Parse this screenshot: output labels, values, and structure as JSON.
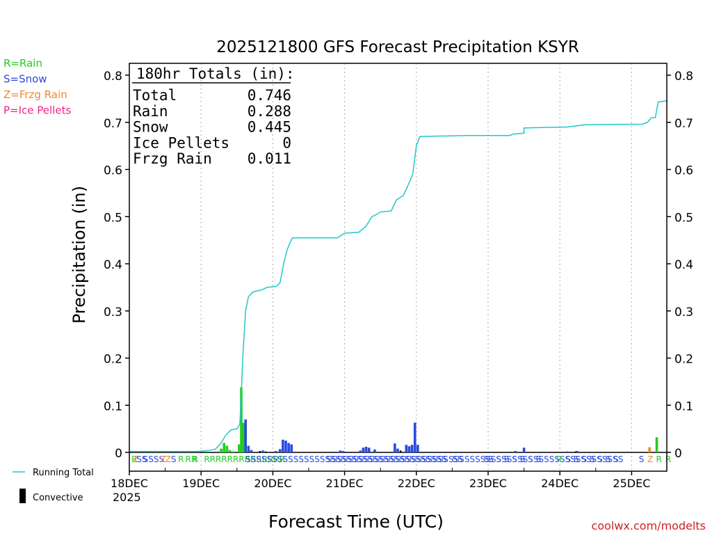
{
  "chart_data": {
    "type": "bar",
    "title": "2025121800 GFS Forecast Precipitation KSYR",
    "ylabel": "Precipitation (in)",
    "xlabel": "Forecast Time (UTC)",
    "ylim": [
      0,
      0.82
    ],
    "y_ticks": [
      "0",
      "0.1",
      "0.2",
      "0.3",
      "0.4",
      "0.5",
      "0.6",
      "0.7",
      "0.8"
    ],
    "x_ticks": [
      {
        "day": 0,
        "label": "18DEC"
      },
      {
        "day": 1,
        "label": "19DEC"
      },
      {
        "day": 2,
        "label": "20DEC"
      },
      {
        "day": 3,
        "label": "21DEC"
      },
      {
        "day": 4,
        "label": "22DEC"
      },
      {
        "day": 5,
        "label": "23DEC"
      },
      {
        "day": 6,
        "label": "24DEC"
      },
      {
        "day": 7,
        "label": "25DEC"
      }
    ],
    "x_year": "2025",
    "x_range_days": [
      0,
      7.5
    ],
    "totals": {
      "header": "180hr Totals (in):",
      "rows": [
        {
          "label": "Total",
          "value": "0.746"
        },
        {
          "label": "Rain",
          "value": "0.288"
        },
        {
          "label": "Snow",
          "value": "0.445"
        },
        {
          "label": "Ice Pellets",
          "value": "0"
        },
        {
          "label": "Frzg Rain",
          "value": "0.011"
        }
      ]
    },
    "legend_types": [
      {
        "label": "R=Rain",
        "color": "#22cc22"
      },
      {
        "label": "S=Snow",
        "color": "#2a4ae0"
      },
      {
        "label": "Z=Frzg Rain",
        "color": "#ee8833"
      },
      {
        "label": "P=Ice Pellets",
        "color": "#ee2288"
      }
    ],
    "legend_series": [
      {
        "label": "Running Total",
        "color": "#20c8c8"
      },
      {
        "label": "Convective",
        "color": "#000000"
      }
    ],
    "series": [
      {
        "name": "Running Total",
        "color": "#20c8c8",
        "points": [
          [
            0,
            0.002
          ],
          [
            0.96,
            0.002
          ],
          [
            1.1,
            0.004
          ],
          [
            1.2,
            0.007
          ],
          [
            1.28,
            0.02
          ],
          [
            1.35,
            0.038
          ],
          [
            1.42,
            0.048
          ],
          [
            1.5,
            0.05
          ],
          [
            1.54,
            0.06
          ],
          [
            1.56,
            0.12
          ],
          [
            1.58,
            0.2
          ],
          [
            1.62,
            0.3
          ],
          [
            1.66,
            0.33
          ],
          [
            1.72,
            0.34
          ],
          [
            1.85,
            0.345
          ],
          [
            1.92,
            0.35
          ],
          [
            2.05,
            0.352
          ],
          [
            2.1,
            0.36
          ],
          [
            2.15,
            0.4
          ],
          [
            2.2,
            0.43
          ],
          [
            2.27,
            0.455
          ],
          [
            2.9,
            0.455
          ],
          [
            3.0,
            0.465
          ],
          [
            3.2,
            0.467
          ],
          [
            3.3,
            0.48
          ],
          [
            3.38,
            0.5
          ],
          [
            3.45,
            0.505
          ],
          [
            3.5,
            0.51
          ],
          [
            3.65,
            0.512
          ],
          [
            3.72,
            0.535
          ],
          [
            3.82,
            0.545
          ],
          [
            3.88,
            0.565
          ],
          [
            3.95,
            0.59
          ],
          [
            4.0,
            0.65
          ],
          [
            4.05,
            0.67
          ],
          [
            4.7,
            0.672
          ],
          [
            5.3,
            0.672
          ],
          [
            5.35,
            0.675
          ],
          [
            5.5,
            0.677
          ],
          [
            5.5,
            0.688
          ],
          [
            5.75,
            0.689
          ],
          [
            6.1,
            0.69
          ],
          [
            6.2,
            0.692
          ],
          [
            6.35,
            0.695
          ],
          [
            7.15,
            0.696
          ],
          [
            7.22,
            0.7
          ],
          [
            7.28,
            0.71
          ],
          [
            7.33,
            0.71
          ],
          [
            7.37,
            0.743
          ],
          [
            7.5,
            0.746
          ]
        ]
      },
      {
        "name": "Rain",
        "color": "#22cc22",
        "points": [
          [
            1.28,
            0.008
          ],
          [
            1.32,
            0.02
          ],
          [
            1.36,
            0.014
          ],
          [
            1.4,
            0.005
          ],
          [
            1.45,
            0.002
          ],
          [
            1.53,
            0.017
          ],
          [
            1.56,
            0.138
          ],
          [
            1.59,
            0.063
          ],
          [
            7.25,
            0.003
          ],
          [
            7.35,
            0.032
          ]
        ]
      },
      {
        "name": "Snow",
        "color": "#2a4ae0",
        "points": [
          [
            1.62,
            0.07
          ],
          [
            1.66,
            0.014
          ],
          [
            1.7,
            0.005
          ],
          [
            1.86,
            0.004
          ],
          [
            2.04,
            0.003
          ],
          [
            2.1,
            0.007
          ],
          [
            2.14,
            0.027
          ],
          [
            2.18,
            0.025
          ],
          [
            2.22,
            0.02
          ],
          [
            2.26,
            0.017
          ],
          [
            2.94,
            0.004
          ],
          [
            2.98,
            0.003
          ],
          [
            3.22,
            0.004
          ],
          [
            3.26,
            0.01
          ],
          [
            3.3,
            0.012
          ],
          [
            3.34,
            0.01
          ],
          [
            3.42,
            0.006
          ],
          [
            3.7,
            0.019
          ],
          [
            3.74,
            0.008
          ],
          [
            3.86,
            0.016
          ],
          [
            3.9,
            0.013
          ],
          [
            3.94,
            0.016
          ],
          [
            3.98,
            0.063
          ],
          [
            4.02,
            0.016
          ],
          [
            5.38,
            0.003
          ],
          [
            5.5,
            0.01
          ],
          [
            6.1,
            0.002
          ],
          [
            6.24,
            0.003
          ]
        ]
      },
      {
        "name": "Frzg Rain",
        "color": "#ee8833",
        "points": [
          [
            7.25,
            0.011
          ]
        ]
      },
      {
        "name": "Convective",
        "color": "#000000",
        "points": [
          [
            1.82,
            0.003
          ],
          [
            1.9,
            0.002
          ],
          [
            3.78,
            0.004
          ],
          [
            6.22,
            0.002
          ]
        ]
      }
    ],
    "ptype_letters": [
      {
        "day": 0.03,
        "text": "R",
        "type": "R"
      },
      {
        "day": 0.05,
        "text": "Z",
        "type": "Z"
      },
      {
        "day": 0.1,
        "text": "SS",
        "type": "S"
      },
      {
        "day": 0.19,
        "text": "SSSS",
        "type": "S"
      },
      {
        "day": 0.43,
        "text": "Z",
        "type": "Z"
      },
      {
        "day": 0.5,
        "text": "Z",
        "type": "Z"
      },
      {
        "day": 0.58,
        "text": "S",
        "type": "S"
      },
      {
        "day": 0.68,
        "text": "R",
        "type": "R"
      },
      {
        "day": 0.78,
        "text": "RR",
        "type": "R"
      },
      {
        "day": 0.88,
        "text": "R",
        "type": "R"
      },
      {
        "day": 1.04,
        "text": "RRRRRRRRRRRRRR",
        "type": "R"
      },
      {
        "day": 1.62,
        "text": "SSSSSSSSSSSSSSSSSSSSSSSSSSSSSSSSSSSSSS",
        "type": "S"
      },
      {
        "day": 2.75,
        "text": "SSSSSSSSSSSSSSSSSSSSSSSSSSSSSSSSSSSSSSSSSSSSSSSSSSSSSSSS",
        "type": "S"
      },
      {
        "day": 4.5,
        "text": "SS",
        "type": "S"
      },
      {
        "day": 4.94,
        "text": "S",
        "type": "S"
      },
      {
        "day": 5.0,
        "text": "S S S S S S S",
        "type": "S"
      },
      {
        "day": 5.95,
        "text": "R",
        "type": "R"
      },
      {
        "day": 6.08,
        "text": "S S S S S S S",
        "type": "S"
      },
      {
        "day": 7.1,
        "text": "S",
        "type": "S"
      },
      {
        "day": 7.22,
        "text": "Z",
        "type": "Z"
      },
      {
        "day": 7.34,
        "text": "R",
        "type": "R"
      },
      {
        "day": 7.47,
        "text": "R",
        "type": "R"
      }
    ],
    "watermark": "coolwx.com/modelts"
  }
}
